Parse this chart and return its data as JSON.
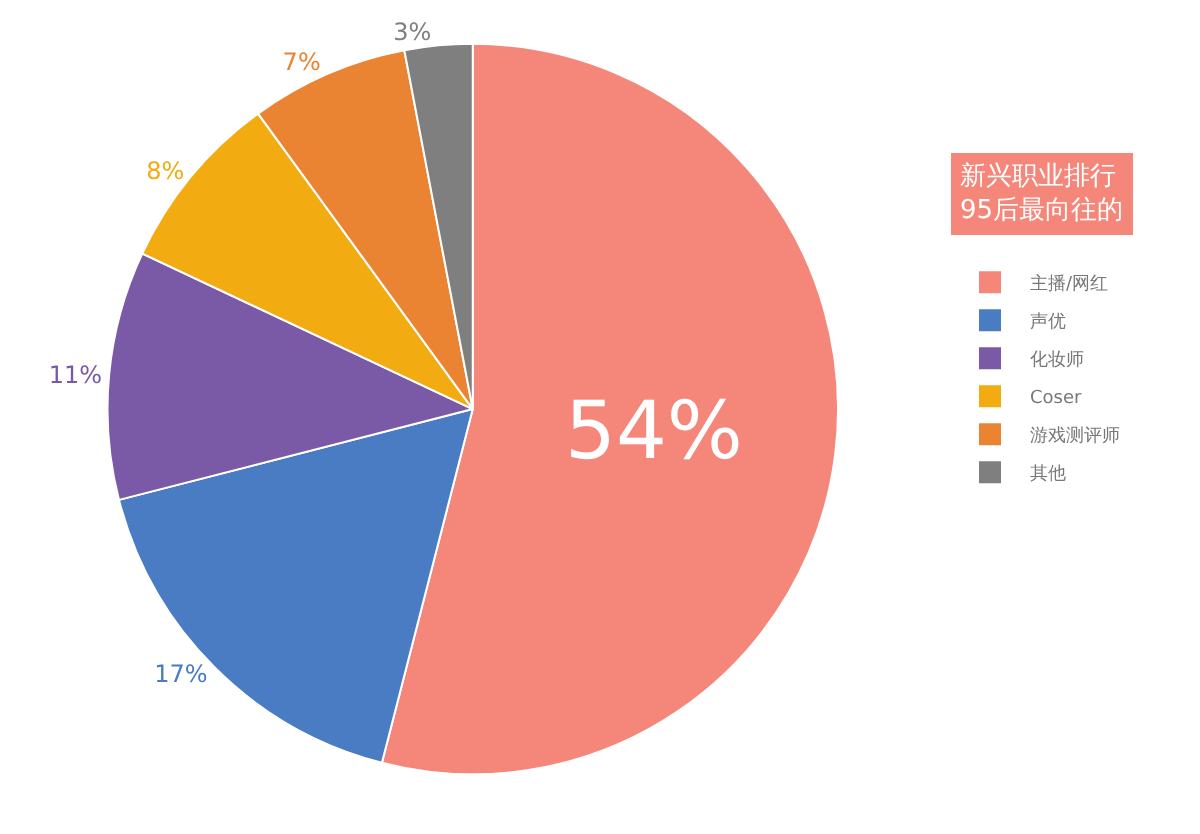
{
  "chart_data": {
    "type": "pie",
    "title": "新兴职业排行\n95后最向往的",
    "categories": [
      "主播/网红",
      "声优",
      "化妆师",
      "Coser",
      "游戏测评师",
      "其他"
    ],
    "values": [
      54,
      17,
      11,
      8,
      7,
      3
    ],
    "value_labels": [
      "54%",
      "17%",
      "11%",
      "8%",
      "7%",
      "3%"
    ],
    "colors": [
      "#f4877a",
      "#4a7cc4",
      "#7a5aa6",
      "#f2ac12",
      "#ea8433",
      "#7f7f7f"
    ],
    "legend": "right"
  }
}
